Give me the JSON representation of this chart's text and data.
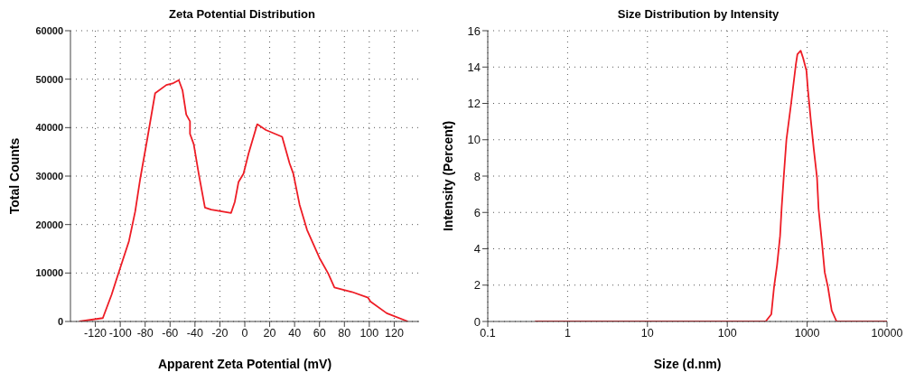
{
  "chart_data": [
    {
      "type": "line",
      "title": "Zeta Potential Distribution",
      "xlabel": "Apparent Zeta Potential (mV)",
      "ylabel": "Total Counts",
      "x": [
        -133,
        -114,
        -107,
        -103,
        -93,
        -88,
        -84,
        -78,
        -72,
        -63,
        -58,
        -53,
        -50,
        -47,
        -44,
        -44,
        -41,
        -37,
        -32,
        -27,
        -11,
        -8,
        -5,
        -1,
        3,
        10,
        17,
        30,
        36,
        39,
        44,
        50,
        60,
        67,
        72,
        86,
        99,
        101,
        114,
        131
      ],
      "series": [
        {
          "color": "#ee1c25",
          "values": [
            0,
            700,
            5500,
            8700,
            16600,
            22700,
            29400,
            38100,
            47100,
            48800,
            49100,
            49800,
            47700,
            42700,
            41300,
            38700,
            36600,
            30500,
            23500,
            23100,
            22400,
            24700,
            28800,
            30500,
            34600,
            40700,
            39500,
            38100,
            32600,
            30500,
            24100,
            18900,
            13100,
            9900,
            7000,
            6100,
            4900,
            4100,
            1700,
            0
          ]
        }
      ],
      "xlim": [
        -140,
        140
      ],
      "xticks": [
        -120,
        -100,
        -80,
        -60,
        -40,
        -20,
        0,
        20,
        40,
        60,
        80,
        100,
        120
      ],
      "ylim": [
        0,
        60000
      ],
      "yticks": [
        0,
        10000,
        20000,
        30000,
        40000,
        50000,
        60000
      ],
      "grid": true,
      "marker": "none",
      "line_style": "solid"
    },
    {
      "type": "line",
      "title": "Size Distribution by Intensity",
      "xlabel": "Size (d.nm)",
      "ylabel": "Intensity (Percent)",
      "x": [
        0.39,
        302,
        356,
        385,
        420,
        458,
        480,
        510,
        550,
        630,
        720,
        755,
        830,
        890,
        980,
        1020,
        1110,
        1210,
        1330,
        1390,
        1550,
        1660,
        1820,
        2030,
        2340,
        10000
      ],
      "series": [
        {
          "color": "#ee1c25",
          "values": [
            0,
            0,
            0.4,
            1.9,
            3.1,
            4.7,
            6.3,
            8.0,
            10.0,
            12.0,
            14.1,
            14.7,
            14.9,
            14.5,
            13.8,
            12.8,
            11.1,
            9.5,
            7.9,
            6.2,
            4.1,
            2.7,
            1.9,
            0.6,
            0,
            0
          ]
        }
      ],
      "xlim": [
        0.1,
        10000
      ],
      "xticks": [
        0.1,
        1,
        10,
        100,
        1000,
        10000
      ],
      "log": "x",
      "ylim": [
        0,
        16
      ],
      "yticks": [
        0,
        2,
        4,
        6,
        8,
        10,
        12,
        14,
        16
      ],
      "grid": true,
      "marker": "none",
      "line_style": "solid"
    }
  ]
}
